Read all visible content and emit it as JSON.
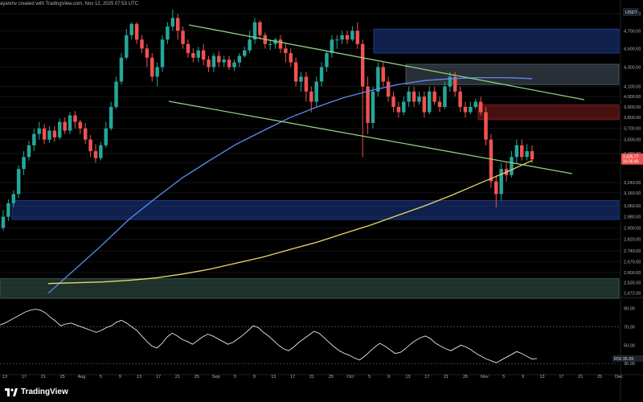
{
  "header": {
    "caption": "ayanmv created with TradingView.com, Nov 12, 2025 07:53 UTC"
  },
  "currency_badge": "USDT",
  "brand": {
    "name": "TradingView",
    "icon": "tradingview-logo"
  },
  "price_tags": {
    "price": "3,435.77",
    "countdown": "16:06:49"
  },
  "rsi_tag": {
    "label": "RSI",
    "value": "35.55"
  },
  "colors": {
    "up": "#26a69a",
    "down": "#ef5350",
    "ma_blue": "#5b8cf5",
    "ma_yellow": "#e9d76b",
    "channel": "#8bd07d",
    "zone_blue": "#1e3a8a",
    "zone_red": "#7f1d1d",
    "zone_grey": "#4b5563",
    "zone_teal": "#365a4f"
  },
  "chart_data": [
    {
      "type": "candlestick",
      "x_axis": {
        "tick_labels": [
          "13",
          "17",
          "21",
          "25",
          "Aug",
          "5",
          "9",
          "13",
          "17",
          "21",
          "25",
          "Sep",
          "5",
          "9",
          "13",
          "17",
          "21",
          "25",
          "Oct",
          "5",
          "9",
          "13",
          "17",
          "21",
          "25",
          "Nov",
          "5",
          "9",
          "13",
          "17",
          "21",
          "25",
          "Dec"
        ]
      },
      "y_axis": {
        "tick_labels": [
          "4,900.00",
          "4,700.00",
          "4,500.00",
          "4,300.00",
          "4,100.00",
          "4,000.00",
          "3,900.00",
          "3,800.00",
          "3,700.00",
          "3,600.00",
          "3,480.00",
          "3,400.00",
          "3,240.00",
          "3,160.00",
          "3,060.00",
          "2,980.00",
          "2,900.00",
          "2,820.00",
          "2,740.00",
          "2,670.00",
          "2,600.00",
          "2,535.00",
          "2,472.00"
        ],
        "range": [
          2445,
          4950
        ],
        "scale": "log"
      },
      "candles": [
        [
          2900,
          2980,
          3030,
          2880
        ],
        [
          2980,
          3080,
          3110,
          2950
        ],
        [
          3080,
          3150,
          3180,
          3050
        ],
        [
          3150,
          3350,
          3380,
          3120
        ],
        [
          3350,
          3450,
          3500,
          3300
        ],
        [
          3450,
          3550,
          3590,
          3420
        ],
        [
          3550,
          3650,
          3700,
          3500
        ],
        [
          3650,
          3700,
          3760,
          3600
        ],
        [
          3700,
          3600,
          3740,
          3560
        ],
        [
          3600,
          3680,
          3720,
          3570
        ],
        [
          3680,
          3620,
          3720,
          3580
        ],
        [
          3620,
          3760,
          3790,
          3600
        ],
        [
          3760,
          3680,
          3800,
          3650
        ],
        [
          3680,
          3820,
          3850,
          3650
        ],
        [
          3820,
          3760,
          3860,
          3700
        ],
        [
          3760,
          3700,
          3780,
          3650
        ],
        [
          3700,
          3600,
          3750,
          3560
        ],
        [
          3600,
          3500,
          3640,
          3450
        ],
        [
          3500,
          3440,
          3560,
          3400
        ],
        [
          3440,
          3550,
          3580,
          3420
        ],
        [
          3550,
          3700,
          3760,
          3530
        ],
        [
          3700,
          3900,
          3950,
          3680
        ],
        [
          3900,
          4150,
          4200,
          3880
        ],
        [
          4150,
          4400,
          4450,
          4120
        ],
        [
          4400,
          4650,
          4720,
          4380
        ],
        [
          4650,
          4780,
          4800,
          4600
        ],
        [
          4780,
          4600,
          4800,
          4550
        ],
        [
          4600,
          4500,
          4650,
          4450
        ],
        [
          4500,
          4400,
          4550,
          4300
        ],
        [
          4400,
          4200,
          4450,
          4150
        ],
        [
          4200,
          4300,
          4350,
          4100
        ],
        [
          4300,
          4600,
          4650,
          4250
        ],
        [
          4600,
          4750,
          4800,
          4550
        ],
        [
          4750,
          4850,
          4950,
          4700
        ],
        [
          4850,
          4700,
          4900,
          4600
        ],
        [
          4700,
          4550,
          4750,
          4500
        ],
        [
          4550,
          4450,
          4600,
          4400
        ],
        [
          4450,
          4400,
          4500,
          4350
        ],
        [
          4400,
          4480,
          4520,
          4350
        ],
        [
          4480,
          4380,
          4550,
          4320
        ],
        [
          4380,
          4300,
          4420,
          4250
        ],
        [
          4300,
          4420,
          4450,
          4250
        ],
        [
          4420,
          4350,
          4470,
          4300
        ],
        [
          4350,
          4380,
          4420,
          4300
        ],
        [
          4380,
          4300,
          4420,
          4270
        ],
        [
          4300,
          4350,
          4380,
          4260
        ],
        [
          4350,
          4420,
          4450,
          4300
        ],
        [
          4420,
          4480,
          4520,
          4400
        ],
        [
          4480,
          4600,
          4700,
          4450
        ],
        [
          4600,
          4800,
          4850,
          4550
        ],
        [
          4800,
          4650,
          4820,
          4600
        ],
        [
          4650,
          4550,
          4680,
          4500
        ],
        [
          4550,
          4550,
          4600,
          4480
        ],
        [
          4550,
          4600,
          4620,
          4500
        ],
        [
          4600,
          4500,
          4650,
          4450
        ],
        [
          4500,
          4450,
          4550,
          4350
        ],
        [
          4450,
          4350,
          4500,
          4300
        ],
        [
          4350,
          4150,
          4400,
          4100
        ],
        [
          4150,
          4200,
          4250,
          4050
        ],
        [
          4200,
          4050,
          4250,
          3950
        ],
        [
          4050,
          3950,
          4100,
          3850
        ],
        [
          3950,
          4150,
          4200,
          3900
        ],
        [
          4150,
          4300,
          4350,
          4100
        ],
        [
          4300,
          4450,
          4480,
          4250
        ],
        [
          4450,
          4600,
          4650,
          4400
        ],
        [
          4600,
          4600,
          4650,
          4500
        ],
        [
          4600,
          4650,
          4700,
          4550
        ],
        [
          4650,
          4600,
          4700,
          4550
        ],
        [
          4600,
          4700,
          4750,
          4580
        ],
        [
          4700,
          4550,
          4800,
          4500
        ],
        [
          4550,
          4100,
          4600,
          3450
        ],
        [
          4100,
          3750,
          4200,
          3650
        ],
        [
          3750,
          4050,
          4100,
          3700
        ],
        [
          4050,
          4300,
          4350,
          4000
        ],
        [
          4300,
          4150,
          4350,
          4100
        ],
        [
          4150,
          4000,
          4200,
          3950
        ],
        [
          4000,
          3900,
          4050,
          3850
        ],
        [
          3900,
          3850,
          3950,
          3800
        ],
        [
          3850,
          3950,
          4000,
          3820
        ],
        [
          3950,
          4050,
          4100,
          3900
        ],
        [
          4050,
          3950,
          4100,
          3900
        ],
        [
          3950,
          4000,
          4050,
          3920
        ],
        [
          4000,
          3850,
          4050,
          3800
        ],
        [
          3850,
          4050,
          4100,
          3830
        ],
        [
          4050,
          3950,
          4100,
          3920
        ],
        [
          3950,
          3900,
          4000,
          3850
        ],
        [
          3900,
          4100,
          4150,
          3880
        ],
        [
          4100,
          4200,
          4250,
          4050
        ],
        [
          4200,
          4050,
          4250,
          4000
        ],
        [
          4050,
          3900,
          4100,
          3850
        ],
        [
          3900,
          3850,
          3950,
          3800
        ],
        [
          3850,
          3900,
          3950,
          3830
        ],
        [
          3900,
          3950,
          3980,
          3880
        ],
        [
          3950,
          3850,
          4000,
          3820
        ],
        [
          3850,
          3600,
          3900,
          3550
        ],
        [
          3600,
          3250,
          3650,
          3200
        ],
        [
          3250,
          3150,
          3300,
          3050
        ],
        [
          3150,
          3350,
          3400,
          3100
        ],
        [
          3350,
          3300,
          3400,
          3250
        ],
        [
          3300,
          3450,
          3500,
          3280
        ],
        [
          3450,
          3550,
          3600,
          3400
        ],
        [
          3550,
          3450,
          3600,
          3420
        ],
        [
          3450,
          3500,
          3560,
          3420
        ],
        [
          3500,
          3430,
          3550,
          3400
        ]
      ],
      "series": [
        {
          "kind": "moving-average",
          "color_key": "ma_blue",
          "values": [
            [
              0,
              2470
            ],
            [
              10,
              2620
            ],
            [
              20,
              2780
            ],
            [
              30,
              2960
            ],
            [
              40,
              3120
            ],
            [
              50,
              3280
            ],
            [
              60,
              3420
            ],
            [
              70,
              3560
            ],
            [
              80,
              3680
            ],
            [
              90,
              3800
            ],
            [
              100,
              3900
            ],
            [
              110,
              3990
            ],
            [
              120,
              4060
            ],
            [
              130,
              4120
            ],
            [
              140,
              4160
            ],
            [
              150,
              4180
            ],
            [
              160,
              4190
            ],
            [
              170,
              4190
            ],
            [
              180,
              4180
            ]
          ]
        },
        {
          "kind": "moving-average",
          "color_key": "ma_yellow",
          "values": [
            [
              0,
              2530
            ],
            [
              10,
              2535
            ],
            [
              20,
              2540
            ],
            [
              30,
              2550
            ],
            [
              40,
              2565
            ],
            [
              50,
              2590
            ],
            [
              60,
              2620
            ],
            [
              70,
              2660
            ],
            [
              80,
              2700
            ],
            [
              90,
              2750
            ],
            [
              100,
              2800
            ],
            [
              110,
              2860
            ],
            [
              120,
              2920
            ],
            [
              130,
              2990
            ],
            [
              140,
              3060
            ],
            [
              150,
              3140
            ],
            [
              160,
              3230
            ],
            [
              170,
              3320
            ],
            [
              180,
              3420
            ]
          ]
        }
      ],
      "channel": [
        {
          "from": [
            0,
            4900
          ],
          "to": [
            210,
            4150
          ]
        },
        {
          "from": [
            0,
            4000
          ],
          "to": [
            220,
            3400
          ]
        }
      ],
      "zones": [
        {
          "x_from": 1,
          "x_to": 3,
          "y_from": 4450,
          "y_to": 4720,
          "color_key": "zone_blue"
        },
        {
          "x_from": 2,
          "x_to": 3,
          "y_from": 4120,
          "y_to": 4330,
          "color_key": "zone_grey"
        },
        {
          "x_from": 3,
          "x_to": 4,
          "y_from": 3780,
          "y_to": 3920,
          "color_key": "zone_red"
        },
        {
          "x_from": 0,
          "x_to": 1,
          "y_from": 2960,
          "y_to": 3100,
          "color_key": "zone_blue"
        },
        {
          "x_from": 0,
          "x_to": 1,
          "y_from": 2440,
          "y_to": 2560,
          "color_key": "zone_teal"
        }
      ]
    },
    {
      "type": "line",
      "name": "RSI",
      "y_axis": {
        "tick_labels": [
          "90.00",
          "70.00",
          "50.00",
          "30.00"
        ],
        "range": [
          18,
          100
        ]
      },
      "reference_lines": [
        70,
        30
      ],
      "values": [
        72,
        74,
        77,
        80,
        83,
        86,
        88,
        89,
        88,
        85,
        80,
        76,
        71,
        73,
        74,
        72,
        70,
        68,
        66,
        64,
        66,
        69,
        71,
        75,
        77,
        74,
        70,
        66,
        60,
        54,
        49,
        47,
        52,
        59,
        63,
        60,
        56,
        54,
        51,
        55,
        59,
        62,
        60,
        57,
        54,
        51,
        53,
        57,
        61,
        66,
        71,
        69,
        64,
        60,
        55,
        50,
        46,
        44,
        48,
        53,
        57,
        61,
        65,
        63,
        58,
        53,
        48,
        44,
        41,
        39,
        36,
        34,
        38,
        43,
        48,
        52,
        49,
        45,
        41,
        42,
        46,
        51,
        55,
        58,
        60,
        57,
        52,
        49,
        46,
        44,
        47,
        50,
        48,
        45,
        41,
        38,
        35,
        33,
        31,
        34,
        37,
        40,
        43,
        41,
        38,
        35,
        35.55
      ]
    }
  ]
}
